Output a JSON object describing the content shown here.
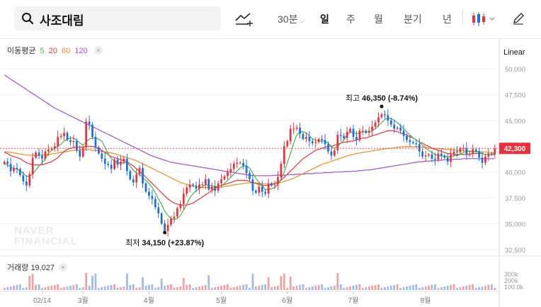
{
  "search": {
    "query": "사조대림"
  },
  "toolbar": {
    "interval": "30분",
    "periods": [
      "일",
      "주",
      "월",
      "분기",
      "년"
    ],
    "active_period": "일"
  },
  "indicators": {
    "ma_label": "이동평균",
    "ma_periods": [
      "5",
      "20",
      "60",
      "120"
    ],
    "volume_label": "거래량",
    "volume_value": "19,027",
    "scale_mode": "Linear"
  },
  "watermark": [
    "NAVER",
    "FINANCIAL"
  ],
  "colors": {
    "up": "#e8323c",
    "down": "#1f6fd8",
    "ma5": "#4cb050",
    "ma20": "#e8323c",
    "ma60": "#f08c1e",
    "ma120": "#a050d0"
  },
  "chart_data": {
    "type": "candlestick",
    "title": "사조대림",
    "y_ticks": [
      "50,000",
      "47,500",
      "45,000",
      "42,500",
      "40,000",
      "37,500",
      "35,000",
      "32,500"
    ],
    "ylim": [
      32500,
      50000
    ],
    "x_ticks": [
      "02/14",
      "3월",
      "4월",
      "5월",
      "6월",
      "7월",
      "8월"
    ],
    "current_price": "42,300",
    "annotations": [
      {
        "label": "최고",
        "value": "46,350",
        "change": "(-8.74%)"
      },
      {
        "label": "최저",
        "value": "34,150",
        "change": "(+23.87%)"
      }
    ],
    "volume_ticks": [
      "300k",
      "200k",
      "100.0k"
    ],
    "closes": [
      41000,
      40800,
      40100,
      40400,
      40300,
      39700,
      39100,
      38700,
      39800,
      41400,
      41900,
      41600,
      41300,
      42000,
      42200,
      42300,
      42500,
      43400,
      43500,
      43800,
      43100,
      42900,
      43000,
      42100,
      41500,
      42400,
      44900,
      44600,
      43400,
      42400,
      41800,
      41300,
      40800,
      40700,
      40300,
      41200,
      40700,
      41000,
      41300,
      40100,
      39300,
      39000,
      39800,
      40400,
      38900,
      38100,
      37700,
      37400,
      36600,
      36000,
      35000,
      34300,
      34900,
      35500,
      35700,
      36500,
      36900,
      37900,
      38500,
      38800,
      38700,
      38400,
      38800,
      38800,
      39300,
      38300,
      38600,
      38200,
      38900,
      39300,
      39600,
      40000,
      40300,
      40800,
      40900,
      40900,
      40600,
      39900,
      39300,
      38200,
      38000,
      38600,
      38100,
      37900,
      38900,
      38700,
      38800,
      39500,
      40800,
      42500,
      43000,
      44200,
      44200,
      44300,
      43700,
      43200,
      43400,
      43000,
      42800,
      42900,
      43200,
      43100,
      42700,
      42000,
      41600,
      42100,
      43600,
      43500,
      43300,
      43900,
      44200,
      43400,
      43100,
      44000,
      44000,
      43800,
      44000,
      44400,
      44800,
      45300,
      45600,
      45500,
      45000,
      44600,
      44200,
      44300,
      44000,
      43500,
      43100,
      42900,
      42800,
      42700,
      42000,
      41500,
      41600,
      41700,
      41300,
      41200,
      41800,
      41600,
      41400,
      41000,
      41700,
      42000,
      41900,
      42300,
      42300,
      41700,
      41800,
      42200,
      42000,
      41400,
      40900,
      41500,
      41800,
      41700,
      42300
    ],
    "ma5_series": [
      40800,
      40700,
      40500,
      40300,
      40300,
      40100,
      39900,
      39600,
      39600,
      39800,
      40200,
      40600,
      40900,
      41300,
      41800,
      42100,
      42300,
      42500,
      42700,
      43000,
      43200,
      43300,
      43300,
      43100,
      42800,
      42600,
      42900,
      43200,
      43300,
      43300,
      43200,
      43000,
      42400,
      41800,
      41300,
      41100,
      40900,
      40900,
      40900,
      40900,
      40600,
      40200,
      39900,
      39800,
      39500,
      39200,
      38900,
      38500,
      38000,
      37400,
      36900,
      36200,
      35800,
      35500,
      35400,
      35500,
      35800,
      36300,
      36900,
      37500,
      37900,
      38200,
      38400,
      38600,
      38800,
      38700,
      38700,
      38600,
      38600,
      38700,
      38900,
      39200,
      39500,
      39800,
      40100,
      40400,
      40600,
      40600,
      40400,
      39900,
      39400,
      39000,
      38700,
      38300,
      38300,
      38400,
      38500,
      38800,
      39300,
      40000,
      40900,
      41800,
      42800,
      43600,
      43900,
      43900,
      43800,
      43500,
      43200,
      43100,
      43000,
      43000,
      43000,
      42800,
      42500,
      42300,
      42500,
      42800,
      43100,
      43600,
      43900,
      43800,
      43700,
      43800,
      43900,
      43900,
      43900,
      44000,
      44200,
      44500,
      44800,
      45100,
      45200,
      45200,
      45000,
      44800,
      44500,
      44200,
      43900,
      43600,
      43300,
      43100,
      42900,
      42600,
      42300,
      42100,
      41900,
      41700,
      41600,
      41600,
      41500,
      41500,
      41500,
      41600,
      41600,
      41700,
      41900,
      42000,
      42000,
      42000,
      42000,
      41900,
      41800,
      41700,
      41700,
      41700,
      41800
    ],
    "ma20_series": [
      41900,
      41800,
      41600,
      41500,
      41400,
      41300,
      41100,
      40900,
      40800,
      40700,
      40700,
      40700,
      40700,
      40800,
      40900,
      41000,
      41200,
      41400,
      41700,
      42000,
      42200,
      42300,
      42400,
      42400,
      42400,
      42400,
      42500,
      42500,
      42500,
      42400,
      42300,
      42100,
      41900,
      41700,
      41500,
      41400,
      41300,
      41200,
      41100,
      41000,
      40800,
      40600,
      40300,
      40100,
      39800,
      39500,
      39200,
      38900,
      38600,
      38300,
      38000,
      37700,
      37400,
      37200,
      37000,
      36900,
      36800,
      36800,
      36800,
      36900,
      37000,
      37200,
      37400,
      37600,
      37800,
      38000,
      38200,
      38400,
      38600,
      38700,
      38800,
      38900,
      39000,
      39100,
      39200,
      39200,
      39200,
      39200,
      39100,
      39000,
      38900,
      38800,
      38700,
      38700,
      38700,
      38800,
      38900,
      39000,
      39200,
      39500,
      39800,
      40100,
      40400,
      40700,
      41000,
      41300,
      41500,
      41700,
      41900,
      42100,
      42200,
      42300,
      42400,
      42500,
      42500,
      42600,
      42700,
      42800,
      42900,
      42900,
      43000,
      43000,
      43100,
      43200,
      43300,
      43300,
      43400,
      43500,
      43600,
      43700,
      43800,
      43900,
      44000,
      44000,
      44000,
      43900,
      43800,
      43700,
      43600,
      43400,
      43300,
      43100,
      42900,
      42800,
      42600,
      42500,
      42300,
      42200,
      42100,
      42000,
      41900,
      41800,
      41800,
      41700,
      41700,
      41700,
      41700,
      41700,
      41700,
      41800,
      41800,
      41800,
      41800,
      41700,
      41700,
      41700,
      41700
    ],
    "ma60_series": [
      42000,
      41950,
      41900,
      41850,
      41800,
      41750,
      41700,
      41650,
      41650,
      41600,
      41600,
      41600,
      41650,
      41700,
      41700,
      41750,
      41800,
      41850,
      41900,
      41950,
      42000,
      42050,
      42100,
      42100,
      42150,
      42150,
      42150,
      42150,
      42100,
      42100,
      42050,
      42000,
      41950,
      41900,
      41850,
      41800,
      41700,
      41600,
      41500,
      41400,
      41300,
      41200,
      41100,
      40950,
      40800,
      40650,
      40500,
      40350,
      40200,
      40050,
      39900,
      39750,
      39600,
      39450,
      39300,
      39150,
      39000,
      38900,
      38800,
      38700,
      38650,
      38600,
      38550,
      38500,
      38500,
      38500,
      38500,
      38500,
      38500,
      38550,
      38600,
      38650,
      38700,
      38750,
      38800,
      38850,
      38900,
      38950,
      38950,
      38950,
      38950,
      38900,
      38850,
      38850,
      38850,
      38850,
      38900,
      38950,
      39000,
      39100,
      39200,
      39300,
      39400,
      39550,
      39700,
      39850,
      40000,
      40150,
      40300,
      40450,
      40600,
      40750,
      40850,
      40950,
      41050,
      41150,
      41250,
      41350,
      41450,
      41550,
      41650,
      41700,
      41800,
      41850,
      41900,
      41950,
      42000,
      42050,
      42100,
      42150,
      42200,
      42250,
      42300,
      42300,
      42350,
      42400,
      42400,
      42450,
      42450,
      42450,
      42450,
      42450,
      42450,
      42400,
      42400,
      42350,
      42300,
      42300,
      42250,
      42250,
      42200,
      42200,
      42150,
      42150,
      42100,
      42100,
      42100,
      42050,
      42050,
      42000,
      42000,
      42000,
      41950,
      41950,
      41900,
      41900,
      41900
    ],
    "ma120_series": [
      49400,
      49200,
      49000,
      48800,
      48600,
      48400,
      48200,
      48000,
      47800,
      47600,
      47400,
      47200,
      47000,
      46800,
      46600,
      46400,
      46200,
      46050,
      45900,
      45750,
      45600,
      45450,
      45300,
      45150,
      45000,
      44850,
      44700,
      44550,
      44400,
      44250,
      44100,
      43950,
      43800,
      43650,
      43500,
      43350,
      43200,
      43050,
      42900,
      42750,
      42600,
      42450,
      42300,
      42150,
      42000,
      41850,
      41700,
      41550,
      41450,
      41350,
      41250,
      41150,
      41050,
      40950,
      40900,
      40850,
      40800,
      40750,
      40700,
      40650,
      40600,
      40550,
      40500,
      40450,
      40400,
      40350,
      40300,
      40250,
      40200,
      40150,
      40100,
      40050,
      40000,
      39950,
      39900,
      39850,
      39800,
      39750,
      39700,
      39650,
      39650,
      39650,
      39650,
      39650,
      39650,
      39650,
      39700,
      39700,
      39700,
      39700,
      39750,
      39750,
      39750,
      39800,
      39800,
      39800,
      39850,
      39850,
      39850,
      39900,
      39900,
      39900,
      39950,
      39950,
      39950,
      40000,
      40000,
      40000,
      40050,
      40050,
      40050,
      40100,
      40100,
      40150,
      40150,
      40200,
      40200,
      40250,
      40300,
      40350,
      40400,
      40450,
      40500,
      40550,
      40600,
      40650,
      40700,
      40750,
      40800,
      40850,
      40900,
      40950,
      41000,
      41000,
      41050,
      41050,
      41100,
      41100,
      41150,
      41150,
      41200,
      41200,
      41200,
      41250,
      41250,
      41250,
      41300,
      41300,
      41300,
      41300,
      41300,
      41300,
      41300,
      41300,
      41300,
      41300,
      41300
    ]
  }
}
